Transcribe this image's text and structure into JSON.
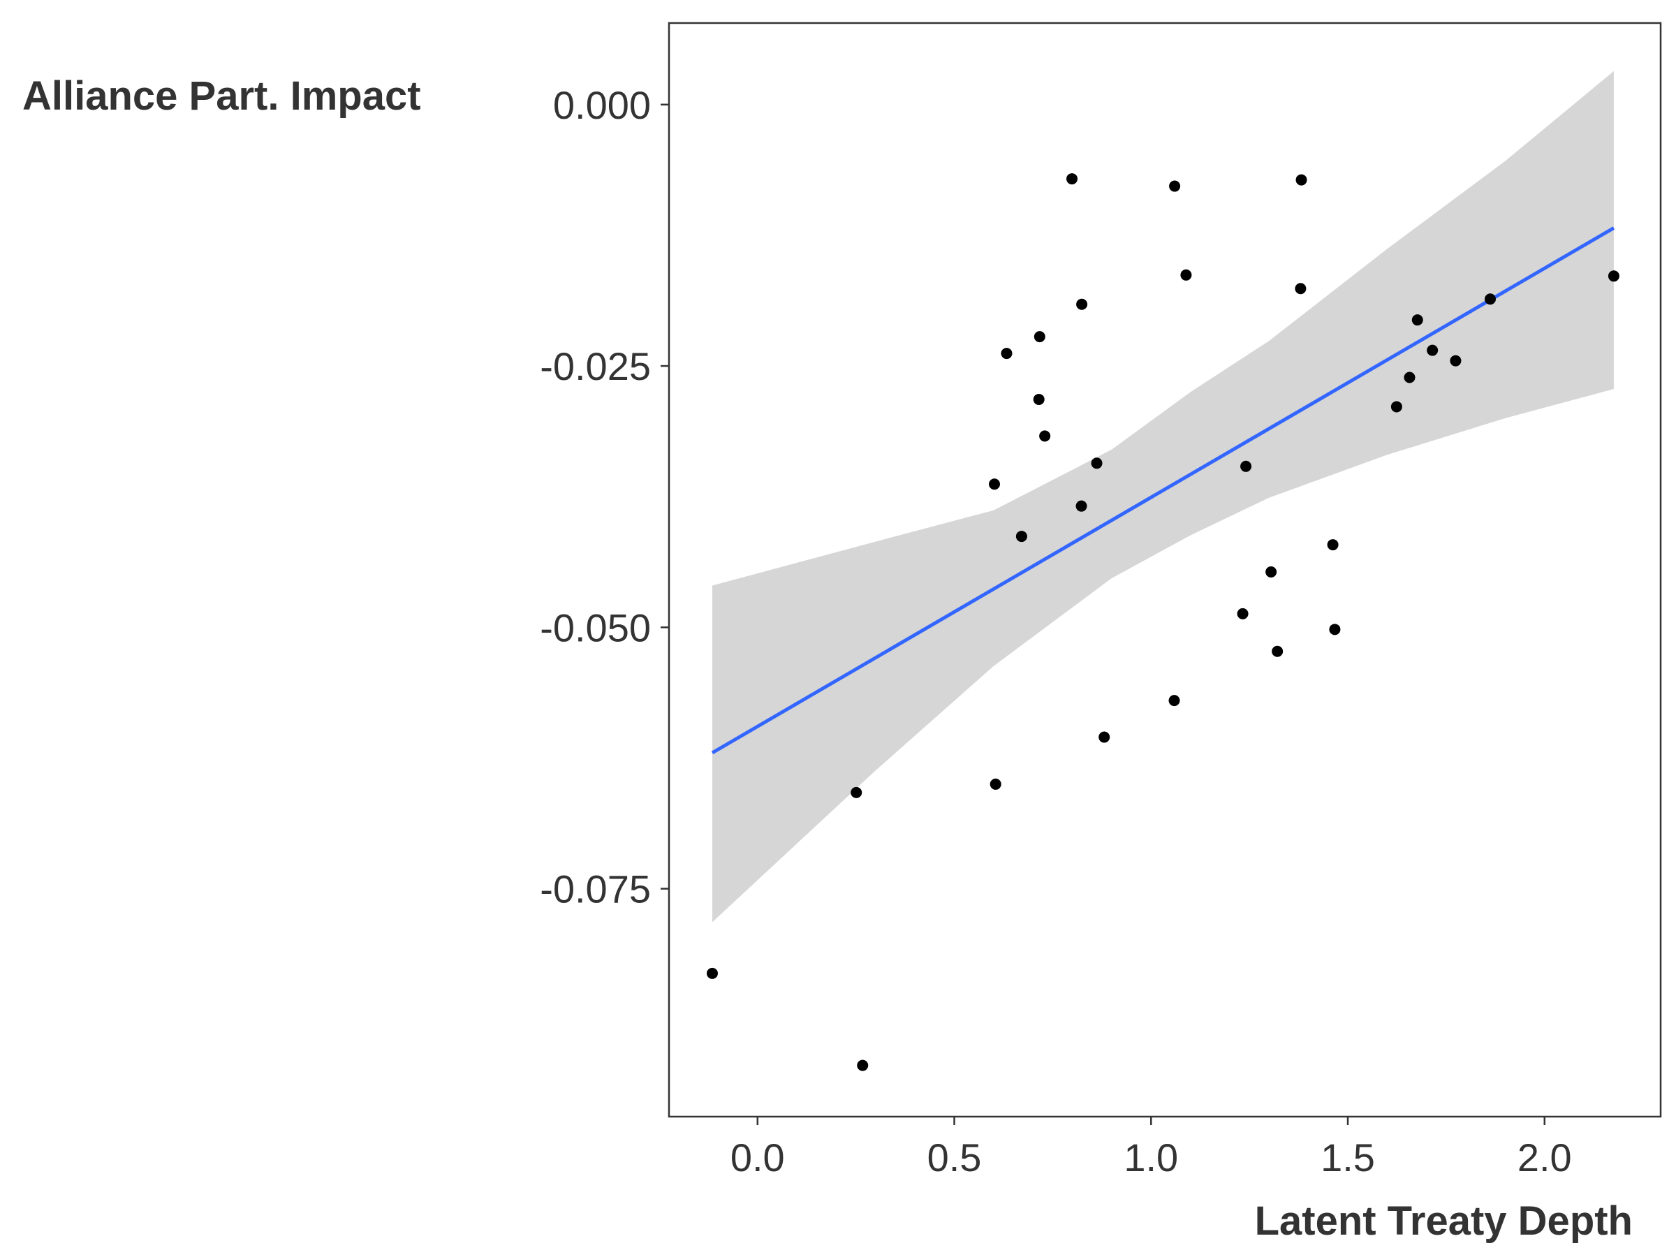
{
  "chart_data": {
    "type": "scatter",
    "title": "",
    "xlabel": "Latent Treaty Depth",
    "ylabel": "Alliance Part. Impact",
    "xlim": [
      -0.225,
      2.295
    ],
    "ylim": [
      -0.0968,
      0.0078
    ],
    "x_ticks": [
      0.0,
      0.5,
      1.0,
      1.5,
      2.0
    ],
    "x_tick_labels": [
      "0.0",
      "0.5",
      "1.0",
      "1.5",
      "2.0"
    ],
    "y_ticks": [
      0.0,
      -0.025,
      -0.05,
      -0.075
    ],
    "y_tick_labels": [
      "0.000",
      "-0.025",
      "-0.050",
      "-0.075"
    ],
    "grid": false,
    "legend": "none",
    "points": [
      {
        "x": -0.115,
        "y": -0.0831
      },
      {
        "x": 0.251,
        "y": -0.0658
      },
      {
        "x": 0.267,
        "y": -0.0919
      },
      {
        "x": 0.602,
        "y": -0.0363
      },
      {
        "x": 0.605,
        "y": -0.065
      },
      {
        "x": 0.633,
        "y": -0.0238
      },
      {
        "x": 0.671,
        "y": -0.0413
      },
      {
        "x": 0.715,
        "y": -0.0282
      },
      {
        "x": 0.717,
        "y": -0.0222
      },
      {
        "x": 0.73,
        "y": -0.0317
      },
      {
        "x": 0.799,
        "y": -0.0071
      },
      {
        "x": 0.823,
        "y": -0.0384
      },
      {
        "x": 0.824,
        "y": -0.0191
      },
      {
        "x": 0.862,
        "y": -0.0343
      },
      {
        "x": 0.881,
        "y": -0.0605
      },
      {
        "x": 1.059,
        "y": -0.057
      },
      {
        "x": 1.06,
        "y": -0.0078
      },
      {
        "x": 1.089,
        "y": -0.0163
      },
      {
        "x": 1.233,
        "y": -0.0487
      },
      {
        "x": 1.241,
        "y": -0.0346
      },
      {
        "x": 1.305,
        "y": -0.0447
      },
      {
        "x": 1.321,
        "y": -0.0523
      },
      {
        "x": 1.38,
        "y": -0.0176
      },
      {
        "x": 1.382,
        "y": -0.0072
      },
      {
        "x": 1.462,
        "y": -0.0421
      },
      {
        "x": 1.467,
        "y": -0.0502
      },
      {
        "x": 1.624,
        "y": -0.0289
      },
      {
        "x": 1.657,
        "y": -0.0261
      },
      {
        "x": 1.677,
        "y": -0.0206
      },
      {
        "x": 1.715,
        "y": -0.0235
      },
      {
        "x": 1.774,
        "y": -0.0245
      },
      {
        "x": 1.862,
        "y": -0.0186
      },
      {
        "x": 2.176,
        "y": -0.0164
      }
    ],
    "fit": {
      "method": "linear",
      "x": [
        -0.115,
        2.176
      ],
      "y": [
        -0.062,
        -0.0118
      ],
      "ci_x": [
        -0.115,
        0.3,
        0.6,
        0.9,
        1.1,
        1.3,
        1.6,
        1.9,
        2.176
      ],
      "ci_lower": [
        -0.0782,
        -0.0637,
        -0.0537,
        -0.0453,
        -0.0412,
        -0.0376,
        -0.0335,
        -0.03,
        -0.0272
      ],
      "ci_upper": [
        -0.046,
        -0.0418,
        -0.0388,
        -0.033,
        -0.0275,
        -0.0226,
        -0.0138,
        -0.0054,
        0.0032
      ]
    },
    "colors": {
      "point": "#000000",
      "fit_line": "#3366FF",
      "ci_band": "#D6D6D6",
      "axis": "#333333"
    }
  }
}
